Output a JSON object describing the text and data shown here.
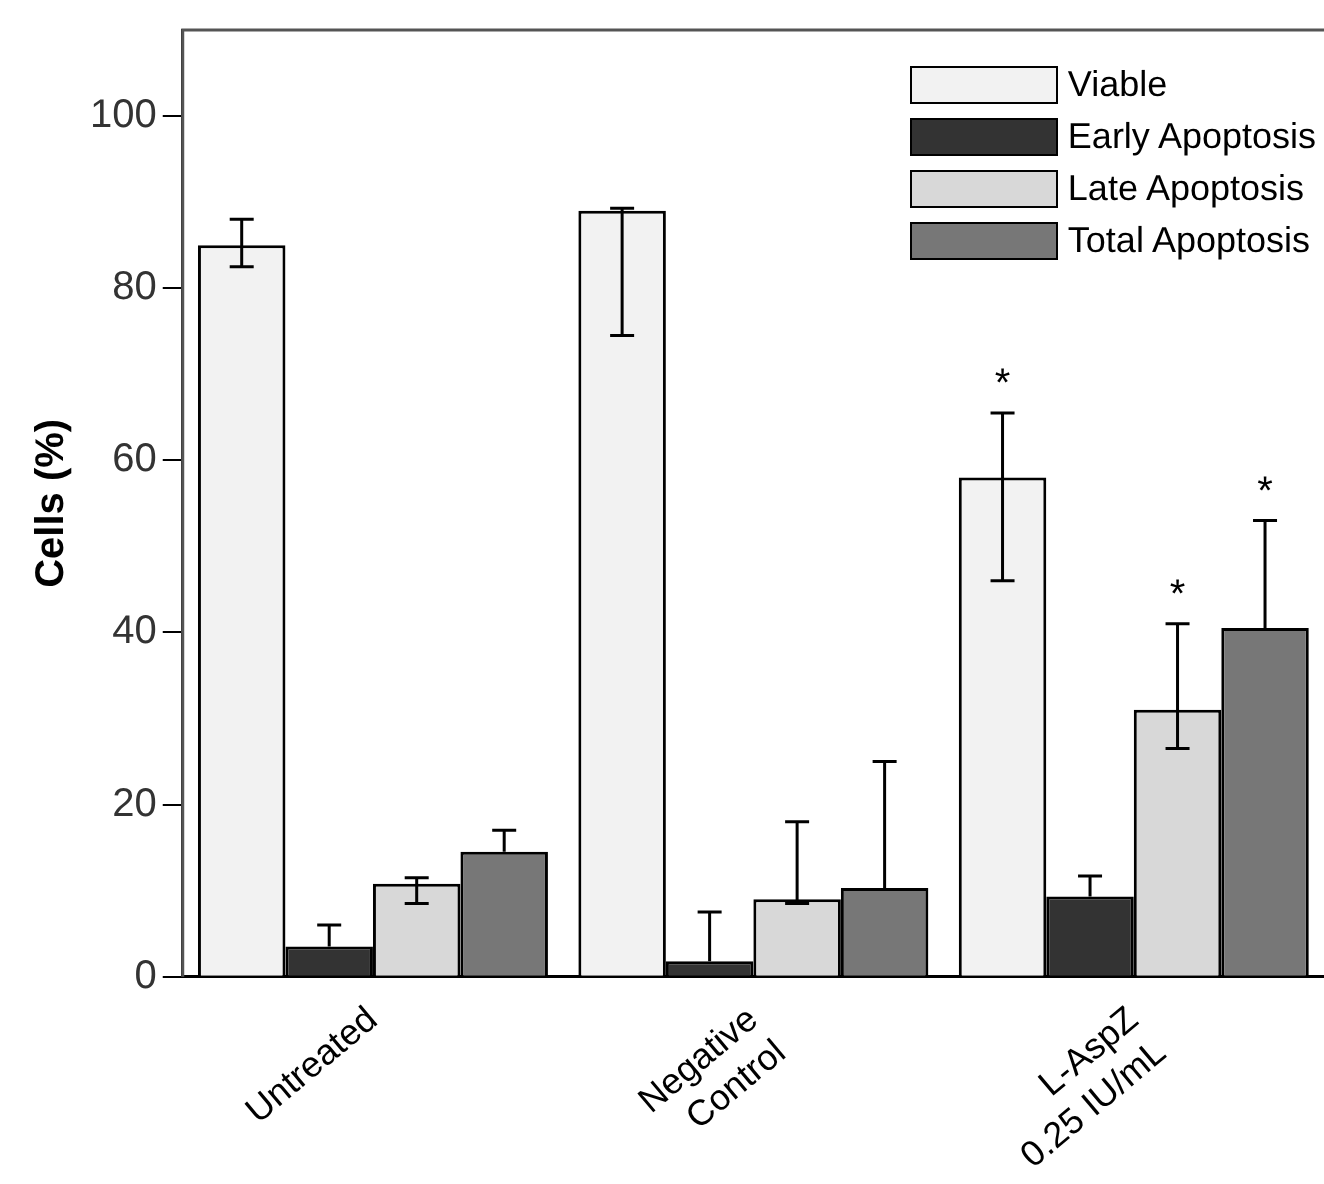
{
  "chart_data": {
    "type": "bar",
    "ylabel": "Cells (%)",
    "categories": [
      "Untreated",
      "Negative Control",
      "L-AspZ 0.25 IU/mL"
    ],
    "series": [
      {
        "name": "Viable",
        "color": "#f2f2f2",
        "values": [
          85,
          89,
          58
        ],
        "errors": [
          [
            82.5,
            88
          ],
          [
            74.5,
            89.3
          ],
          [
            46,
            65.5
          ]
        ]
      },
      {
        "name": "Early Apoptosis",
        "color": "#333333",
        "values": [
          3.5,
          1.8,
          9.3
        ],
        "errors": [
          [
            3.5,
            6
          ],
          [
            1.8,
            7.5
          ],
          [
            9.3,
            11.7
          ]
        ]
      },
      {
        "name": "Late Apoptosis",
        "color": "#d8d8d8",
        "values": [
          10.8,
          9,
          31
        ],
        "errors": [
          [
            8.5,
            11.5
          ],
          [
            8.5,
            18
          ],
          [
            26.5,
            41
          ]
        ]
      },
      {
        "name": "Total Apoptosis",
        "color": "#777777",
        "values": [
          14.5,
          10.3,
          40.5
        ],
        "errors": [
          [
            14.5,
            17
          ],
          [
            10.3,
            25
          ],
          [
            40.5,
            53
          ]
        ]
      }
    ],
    "ylim": [
      0,
      110
    ],
    "yticks": [
      0,
      20,
      40,
      60,
      80,
      100
    ],
    "grid": false,
    "legend": "top right",
    "annotations": [
      "*",
      "*",
      "*"
    ]
  }
}
